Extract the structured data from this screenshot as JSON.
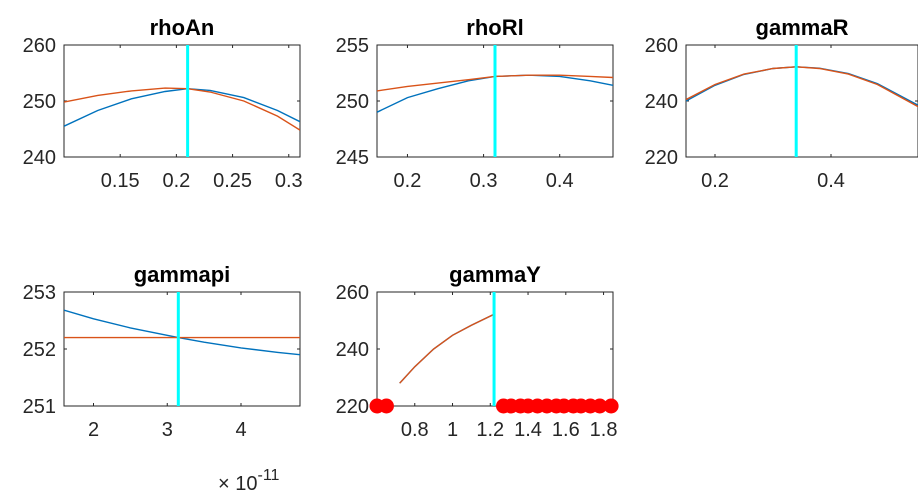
{
  "chart_data": [
    {
      "type": "line",
      "title": "rhoAn",
      "xlim": [
        0.1,
        0.31
      ],
      "ylim": [
        240,
        260
      ],
      "xticks": [
        0.15,
        0.2,
        0.25,
        0.3
      ],
      "xtick_labels": [
        "0.15",
        "0.2",
        "0.25",
        "0.3"
      ],
      "yticks": [
        240,
        250,
        260
      ],
      "ytick_labels": [
        "240",
        "250",
        "260"
      ],
      "vline_x": 0.21,
      "series": [
        {
          "x": [
            0.1,
            0.13,
            0.16,
            0.19,
            0.21,
            0.23,
            0.26,
            0.29,
            0.31
          ],
          "values": [
            245.5,
            248.3,
            250.4,
            251.7,
            252.2,
            251.9,
            250.6,
            248.3,
            246.3
          ],
          "color": "#0072BD"
        },
        {
          "x": [
            0.1,
            0.13,
            0.16,
            0.19,
            0.21,
            0.23,
            0.26,
            0.29,
            0.31
          ],
          "values": [
            249.8,
            251.0,
            251.8,
            252.3,
            252.2,
            251.6,
            250.0,
            247.3,
            244.8
          ],
          "color": "#D95319"
        }
      ]
    },
    {
      "type": "line",
      "title": "rhoRl",
      "xlim": [
        0.16,
        0.47
      ],
      "ylim": [
        245,
        255
      ],
      "xticks": [
        0.2,
        0.3,
        0.4
      ],
      "xtick_labels": [
        "0.2",
        "0.3",
        "0.4"
      ],
      "yticks": [
        245,
        250,
        255
      ],
      "ytick_labels": [
        "245",
        "250",
        "255"
      ],
      "vline_x": 0.315,
      "series": [
        {
          "x": [
            0.16,
            0.2,
            0.24,
            0.28,
            0.315,
            0.36,
            0.4,
            0.44,
            0.47
          ],
          "values": [
            249.0,
            250.3,
            251.1,
            251.8,
            252.2,
            252.3,
            252.2,
            251.8,
            251.4
          ],
          "color": "#0072BD"
        },
        {
          "x": [
            0.16,
            0.2,
            0.24,
            0.28,
            0.315,
            0.36,
            0.4,
            0.44,
            0.47
          ],
          "values": [
            250.9,
            251.3,
            251.6,
            251.9,
            252.2,
            252.3,
            252.3,
            252.2,
            252.1
          ],
          "color": "#D95319"
        }
      ]
    },
    {
      "type": "line",
      "title": "gammaR",
      "xlim": [
        0.15,
        0.55
      ],
      "ylim": [
        220,
        260
      ],
      "xticks": [
        0.2,
        0.4
      ],
      "xtick_labels": [
        "0.2",
        "0.4"
      ],
      "yticks": [
        220,
        240,
        260
      ],
      "ytick_labels": [
        "220",
        "240",
        "260"
      ],
      "vline_x": 0.34,
      "series": [
        {
          "x": [
            0.15,
            0.2,
            0.25,
            0.3,
            0.34,
            0.38,
            0.43,
            0.48,
            0.55
          ],
          "values": [
            240.0,
            245.6,
            249.5,
            251.6,
            252.2,
            251.7,
            249.8,
            246.2,
            238.5
          ],
          "color": "#0072BD"
        },
        {
          "x": [
            0.15,
            0.2,
            0.25,
            0.3,
            0.34,
            0.38,
            0.43,
            0.48,
            0.55
          ],
          "values": [
            240.5,
            245.9,
            249.6,
            251.6,
            252.2,
            251.6,
            249.6,
            245.9,
            238.0
          ],
          "color": "#D95319"
        }
      ]
    },
    {
      "type": "line",
      "title": "gammapi",
      "xlim": [
        1.6e-11,
        4.8e-11
      ],
      "ylim": [
        251,
        253
      ],
      "xticks": [
        2e-11,
        3e-11,
        4e-11
      ],
      "xtick_labels": [
        "2",
        "3",
        "4"
      ],
      "yticks": [
        251,
        252,
        253
      ],
      "ytick_labels": [
        "251",
        "252",
        "253"
      ],
      "x_exponent_label": "× 10",
      "x_exponent_power": "-11",
      "vline_x": 3.15e-11,
      "series": [
        {
          "x": [
            1.6e-11,
            2e-11,
            2.5e-11,
            3.15e-11,
            3.5e-11,
            4e-11,
            4.5e-11,
            4.8e-11
          ],
          "values": [
            252.68,
            252.53,
            252.37,
            252.2,
            252.12,
            252.02,
            251.94,
            251.9
          ],
          "color": "#0072BD"
        },
        {
          "x": [
            1.6e-11,
            4.8e-11
          ],
          "values": [
            252.2,
            252.2
          ],
          "color": "#D95319"
        }
      ]
    },
    {
      "type": "line",
      "title": "gammaY",
      "xlim": [
        0.6,
        1.85
      ],
      "ylim": [
        220,
        260
      ],
      "xticks": [
        0.8,
        1.0,
        1.2,
        1.4,
        1.6,
        1.8
      ],
      "xtick_labels": [
        "0.8",
        "1",
        "1.2",
        "1.4",
        "1.6",
        "1.8"
      ],
      "yticks": [
        220,
        240,
        260
      ],
      "ytick_labels": [
        "220",
        "240",
        "260"
      ],
      "vline_x": 1.22,
      "series": [
        {
          "x": [
            0.72,
            0.8,
            0.9,
            1.0,
            1.1,
            1.22
          ],
          "values": [
            228.0,
            233.8,
            240.0,
            244.8,
            248.3,
            252.2
          ],
          "color": "#0072BD"
        },
        {
          "x": [
            0.72,
            0.8,
            0.9,
            1.0,
            1.1,
            1.22
          ],
          "values": [
            228.0,
            233.8,
            240.0,
            244.8,
            248.3,
            252.2
          ],
          "color": "#D95319"
        }
      ],
      "markers": {
        "y": 220,
        "x": [
          0.6,
          0.65,
          1.27,
          1.31,
          1.36,
          1.4,
          1.45,
          1.5,
          1.55,
          1.59,
          1.64,
          1.68,
          1.73,
          1.78,
          1.84
        ],
        "color": "#FF0000"
      }
    }
  ]
}
